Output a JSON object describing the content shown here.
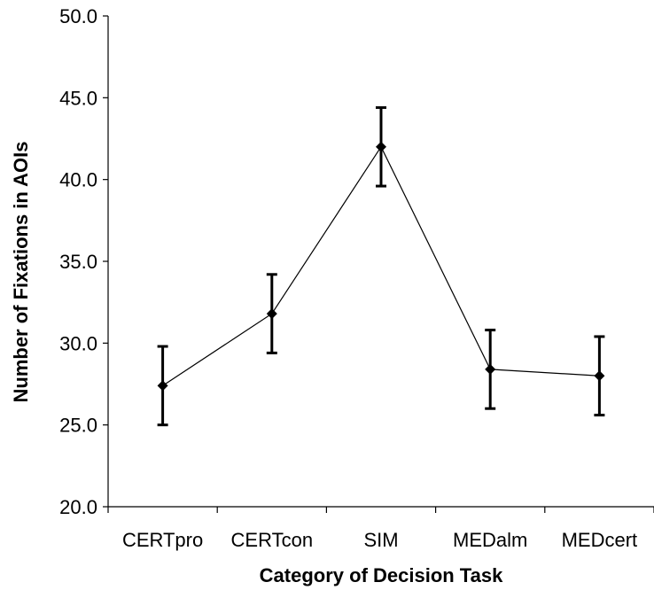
{
  "chart_data": {
    "type": "line",
    "title": "",
    "xlabel": "Category of Decision Task",
    "ylabel": "Number of Fixations in AOIs",
    "categories": [
      "CERTpro",
      "CERTcon",
      "SIM",
      "MEDalm",
      "MEDcert"
    ],
    "ylim": [
      20.0,
      50.0
    ],
    "ytick_step": 5.0,
    "ytick_labels": [
      "20.0",
      "25.0",
      "30.0",
      "35.0",
      "40.0",
      "45.0",
      "50.0"
    ],
    "grid": false,
    "legend": "none",
    "series": [
      {
        "values": [
          27.4,
          31.8,
          42.0,
          28.4,
          28.0
        ],
        "error_plus_minus": [
          2.4,
          2.4,
          2.4,
          2.4,
          2.4
        ],
        "marker": "diamond",
        "color": "#000000"
      }
    ]
  }
}
